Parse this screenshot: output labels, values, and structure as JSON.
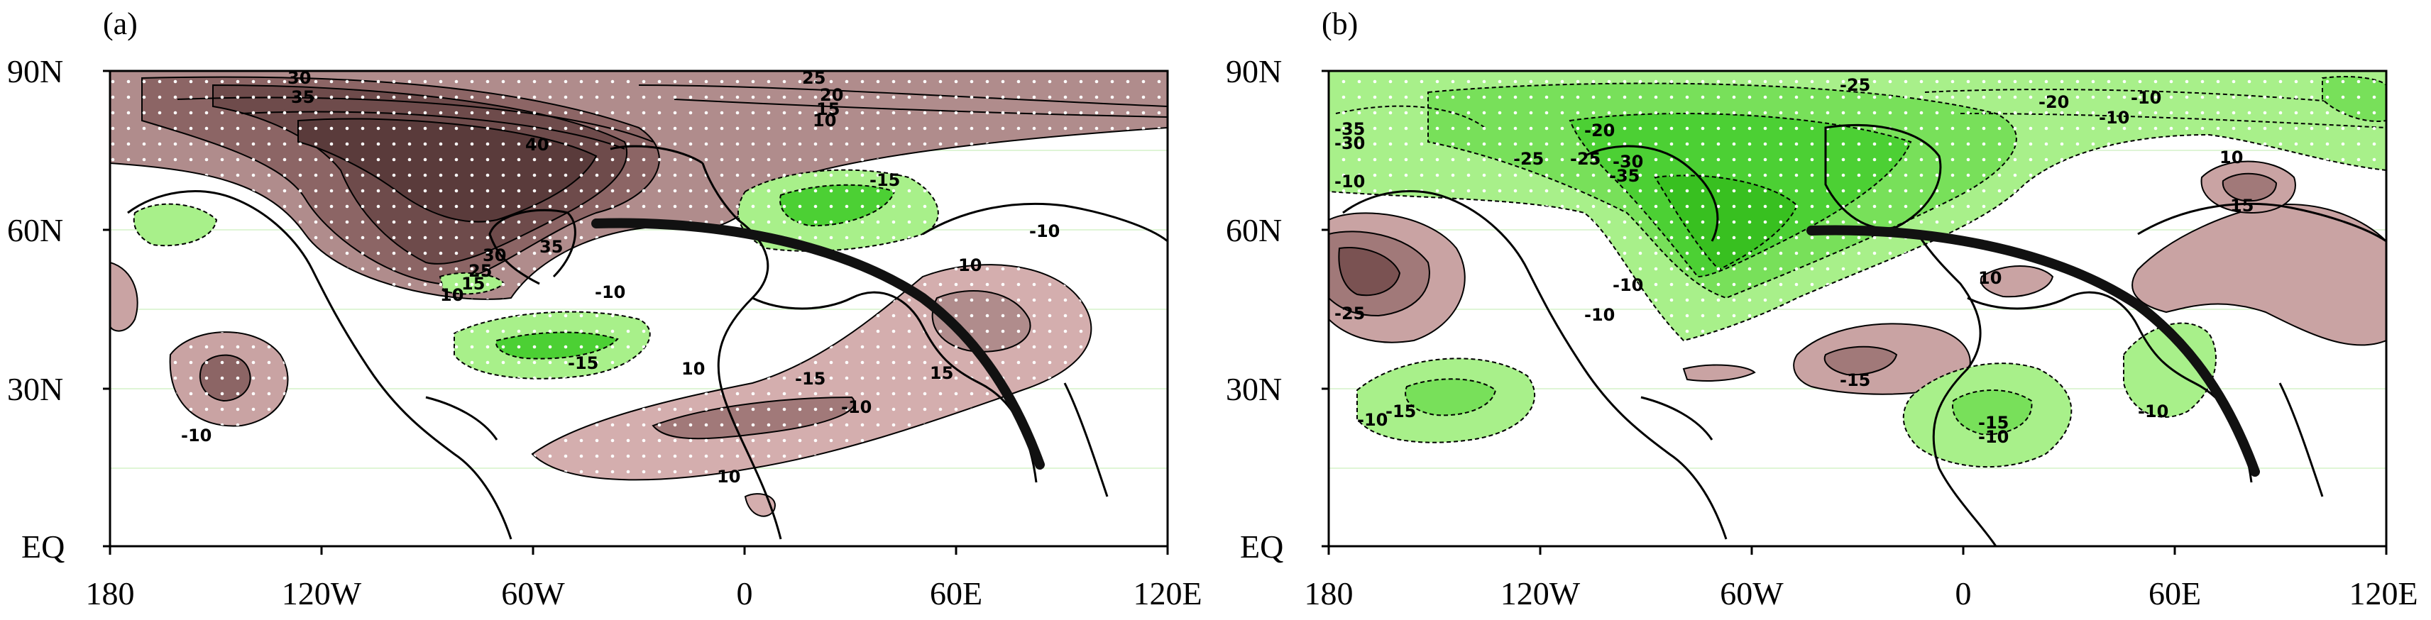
{
  "panels": [
    {
      "label": "(a)",
      "x_ticks": [
        "180",
        "120W",
        "60W",
        "0",
        "60E",
        "120E"
      ],
      "y_ticks": [
        "90N",
        "60N",
        "30N",
        "EQ"
      ],
      "contour_labels": [
        "30",
        "35",
        "25",
        "20",
        "15",
        "10",
        "40",
        "35",
        "30",
        "25",
        "15",
        "10",
        "-15",
        "-10",
        "-10",
        "-15",
        "10",
        "10",
        "-15",
        "15",
        "10",
        "-10",
        "-10"
      ]
    },
    {
      "label": "(b)",
      "x_ticks": [
        "180",
        "120W",
        "60W",
        "0",
        "60E",
        "120E"
      ],
      "y_ticks": [
        "90N",
        "60N",
        "30N",
        "EQ"
      ],
      "contour_labels": [
        "-25",
        "-20",
        "-10",
        "-35",
        "-30",
        "-10",
        "-20",
        "-25",
        "-25",
        "-30",
        "-35",
        "-10",
        "-10",
        "10",
        "15",
        "-25",
        "-10",
        "10",
        "-15",
        "-10",
        "-15",
        "-10",
        "-15",
        "-10"
      ]
    }
  ],
  "colors": {
    "positive": "#c9a3a3",
    "positive_strong": "#7a5252",
    "negative": "#a8f08a",
    "negative_strong": "#4cd034"
  }
}
